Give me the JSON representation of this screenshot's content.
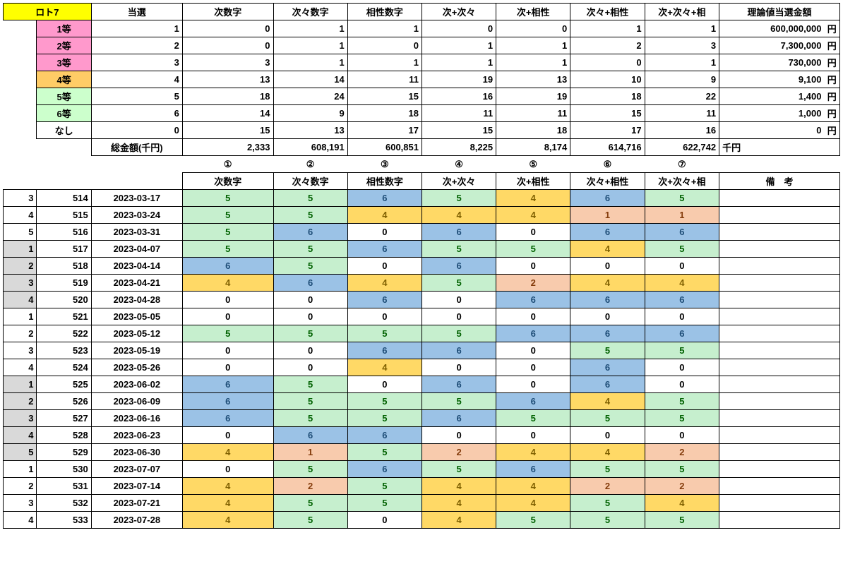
{
  "title": "ロト7",
  "summary": {
    "cols": [
      "当選",
      "次数字",
      "次々数字",
      "相性数字",
      "次+次々",
      "次+相性",
      "次々+相性",
      "次+次々+相"
    ],
    "amount_header": "理論値当選金額",
    "rows": [
      {
        "label": "1等",
        "cls": "hdr-pink",
        "vals": [
          1,
          0,
          1,
          1,
          0,
          0,
          1,
          1
        ],
        "amount": "600,000,000"
      },
      {
        "label": "2等",
        "cls": "hdr-pink",
        "vals": [
          2,
          0,
          1,
          0,
          1,
          1,
          2,
          3
        ],
        "amount": "7,300,000"
      },
      {
        "label": "3等",
        "cls": "hdr-pink",
        "vals": [
          3,
          3,
          1,
          1,
          1,
          1,
          0,
          1
        ],
        "amount": "730,000"
      },
      {
        "label": "4等",
        "cls": "hdr-orange",
        "vals": [
          4,
          13,
          14,
          11,
          19,
          13,
          10,
          9
        ],
        "amount": "9,100"
      },
      {
        "label": "5等",
        "cls": "hdr-ltgreen",
        "vals": [
          5,
          18,
          24,
          15,
          16,
          19,
          18,
          22
        ],
        "amount": "1,400"
      },
      {
        "label": "6等",
        "cls": "hdr-ltgreen",
        "vals": [
          6,
          14,
          9,
          18,
          11,
          11,
          15,
          11
        ],
        "amount": "1,000"
      },
      {
        "label": "なし",
        "cls": "",
        "vals": [
          0,
          15,
          13,
          17,
          15,
          18,
          17,
          16
        ],
        "amount": "0"
      }
    ],
    "total_label": "総金額(千円)",
    "totals": [
      "2,333",
      "608,191",
      "600,851",
      "8,225",
      "8,174",
      "614,716",
      "622,742"
    ],
    "total_unit": "千円",
    "circled": [
      "①",
      "②",
      "③",
      "④",
      "⑤",
      "⑥",
      "⑦"
    ],
    "sub_headers": [
      "次数字",
      "次々数字",
      "相性数字",
      "次+次々",
      "次+相性",
      "次々+相性",
      "次+次々+相"
    ],
    "remarks": "備　考",
    "yen": "円"
  },
  "data": [
    {
      "a": "3",
      "b": "514",
      "date": "2023-03-17",
      "hc": "",
      "v": [
        [
          "5",
          "g"
        ],
        [
          "5",
          "g"
        ],
        [
          "6",
          "b"
        ],
        [
          "5",
          "g"
        ],
        [
          "4",
          "o"
        ],
        [
          "6",
          "b"
        ],
        [
          "5",
          "g"
        ]
      ]
    },
    {
      "a": "4",
      "b": "515",
      "date": "2023-03-24",
      "hc": "",
      "v": [
        [
          "5",
          "g"
        ],
        [
          "5",
          "g"
        ],
        [
          "4",
          "o"
        ],
        [
          "4",
          "o"
        ],
        [
          "4",
          "o"
        ],
        [
          "1",
          "r"
        ],
        [
          "1",
          "r"
        ]
      ]
    },
    {
      "a": "5",
      "b": "516",
      "date": "2023-03-31",
      "hc": "",
      "v": [
        [
          "5",
          "g"
        ],
        [
          "6",
          "b"
        ],
        [
          "0",
          ""
        ],
        [
          "6",
          "b"
        ],
        [
          "0",
          ""
        ],
        [
          "6",
          "b"
        ],
        [
          "6",
          "b"
        ]
      ]
    },
    {
      "a": "1",
      "b": "517",
      "date": "2023-04-07",
      "hc": "g",
      "v": [
        [
          "5",
          "g"
        ],
        [
          "5",
          "g"
        ],
        [
          "6",
          "b"
        ],
        [
          "5",
          "g"
        ],
        [
          "5",
          "g"
        ],
        [
          "4",
          "o"
        ],
        [
          "5",
          "g"
        ]
      ]
    },
    {
      "a": "2",
      "b": "518",
      "date": "2023-04-14",
      "hc": "g",
      "v": [
        [
          "6",
          "b"
        ],
        [
          "5",
          "g"
        ],
        [
          "0",
          ""
        ],
        [
          "6",
          "b"
        ],
        [
          "0",
          ""
        ],
        [
          "0",
          ""
        ],
        [
          "0",
          ""
        ]
      ]
    },
    {
      "a": "3",
      "b": "519",
      "date": "2023-04-21",
      "hc": "g",
      "v": [
        [
          "4",
          "o"
        ],
        [
          "6",
          "b"
        ],
        [
          "4",
          "o"
        ],
        [
          "5",
          "g"
        ],
        [
          "2",
          "r"
        ],
        [
          "4",
          "o"
        ],
        [
          "4",
          "o"
        ]
      ]
    },
    {
      "a": "4",
      "b": "520",
      "date": "2023-04-28",
      "hc": "g",
      "v": [
        [
          "0",
          ""
        ],
        [
          "0",
          ""
        ],
        [
          "6",
          "b"
        ],
        [
          "0",
          ""
        ],
        [
          "6",
          "b"
        ],
        [
          "6",
          "b"
        ],
        [
          "6",
          "b"
        ]
      ]
    },
    {
      "a": "1",
      "b": "521",
      "date": "2023-05-05",
      "hc": "",
      "v": [
        [
          "0",
          ""
        ],
        [
          "0",
          ""
        ],
        [
          "0",
          ""
        ],
        [
          "0",
          ""
        ],
        [
          "0",
          ""
        ],
        [
          "0",
          ""
        ],
        [
          "0",
          ""
        ]
      ]
    },
    {
      "a": "2",
      "b": "522",
      "date": "2023-05-12",
      "hc": "",
      "v": [
        [
          "5",
          "g"
        ],
        [
          "5",
          "g"
        ],
        [
          "5",
          "g"
        ],
        [
          "5",
          "g"
        ],
        [
          "6",
          "b"
        ],
        [
          "6",
          "b"
        ],
        [
          "6",
          "b"
        ]
      ]
    },
    {
      "a": "3",
      "b": "523",
      "date": "2023-05-19",
      "hc": "",
      "v": [
        [
          "0",
          ""
        ],
        [
          "0",
          ""
        ],
        [
          "6",
          "b"
        ],
        [
          "6",
          "b"
        ],
        [
          "0",
          ""
        ],
        [
          "5",
          "g"
        ],
        [
          "5",
          "g"
        ]
      ]
    },
    {
      "a": "4",
      "b": "524",
      "date": "2023-05-26",
      "hc": "",
      "v": [
        [
          "0",
          ""
        ],
        [
          "0",
          ""
        ],
        [
          "4",
          "o"
        ],
        [
          "0",
          ""
        ],
        [
          "0",
          ""
        ],
        [
          "6",
          "b"
        ],
        [
          "0",
          ""
        ]
      ]
    },
    {
      "a": "1",
      "b": "525",
      "date": "2023-06-02",
      "hc": "g",
      "v": [
        [
          "6",
          "b"
        ],
        [
          "5",
          "g"
        ],
        [
          "0",
          ""
        ],
        [
          "6",
          "b"
        ],
        [
          "0",
          ""
        ],
        [
          "6",
          "b"
        ],
        [
          "0",
          ""
        ]
      ]
    },
    {
      "a": "2",
      "b": "526",
      "date": "2023-06-09",
      "hc": "g",
      "v": [
        [
          "6",
          "b"
        ],
        [
          "5",
          "g"
        ],
        [
          "5",
          "g"
        ],
        [
          "5",
          "g"
        ],
        [
          "6",
          "b"
        ],
        [
          "4",
          "o"
        ],
        [
          "5",
          "g"
        ]
      ]
    },
    {
      "a": "3",
      "b": "527",
      "date": "2023-06-16",
      "hc": "g",
      "v": [
        [
          "6",
          "b"
        ],
        [
          "5",
          "g"
        ],
        [
          "5",
          "g"
        ],
        [
          "6",
          "b"
        ],
        [
          "5",
          "g"
        ],
        [
          "5",
          "g"
        ],
        [
          "5",
          "g"
        ]
      ]
    },
    {
      "a": "4",
      "b": "528",
      "date": "2023-06-23",
      "hc": "g",
      "v": [
        [
          "0",
          ""
        ],
        [
          "6",
          "b"
        ],
        [
          "6",
          "b"
        ],
        [
          "0",
          ""
        ],
        [
          "0",
          ""
        ],
        [
          "0",
          ""
        ],
        [
          "0",
          ""
        ]
      ]
    },
    {
      "a": "5",
      "b": "529",
      "date": "2023-06-30",
      "hc": "g",
      "v": [
        [
          "4",
          "o"
        ],
        [
          "1",
          "r"
        ],
        [
          "5",
          "g"
        ],
        [
          "2",
          "r"
        ],
        [
          "4",
          "o"
        ],
        [
          "4",
          "o"
        ],
        [
          "2",
          "r"
        ]
      ]
    },
    {
      "a": "1",
      "b": "530",
      "date": "2023-07-07",
      "hc": "",
      "v": [
        [
          "0",
          ""
        ],
        [
          "5",
          "g"
        ],
        [
          "6",
          "b"
        ],
        [
          "5",
          "g"
        ],
        [
          "6",
          "b"
        ],
        [
          "5",
          "g"
        ],
        [
          "5",
          "g"
        ]
      ]
    },
    {
      "a": "2",
      "b": "531",
      "date": "2023-07-14",
      "hc": "",
      "v": [
        [
          "4",
          "o"
        ],
        [
          "2",
          "r"
        ],
        [
          "5",
          "g"
        ],
        [
          "4",
          "o"
        ],
        [
          "4",
          "o"
        ],
        [
          "2",
          "r"
        ],
        [
          "2",
          "r"
        ]
      ]
    },
    {
      "a": "3",
      "b": "532",
      "date": "2023-07-21",
      "hc": "",
      "v": [
        [
          "4",
          "o"
        ],
        [
          "5",
          "g"
        ],
        [
          "5",
          "g"
        ],
        [
          "4",
          "o"
        ],
        [
          "4",
          "o"
        ],
        [
          "5",
          "g"
        ],
        [
          "4",
          "o"
        ]
      ]
    },
    {
      "a": "4",
      "b": "533",
      "date": "2023-07-28",
      "hc": "",
      "v": [
        [
          "4",
          "o"
        ],
        [
          "5",
          "g"
        ],
        [
          "0",
          ""
        ],
        [
          "4",
          "o"
        ],
        [
          "5",
          "g"
        ],
        [
          "5",
          "g"
        ],
        [
          "5",
          "g"
        ]
      ]
    }
  ],
  "widths": {
    "a": 48,
    "b": 78,
    "date": 130,
    "v": 106,
    "remarks": 150,
    "yen": 22
  }
}
